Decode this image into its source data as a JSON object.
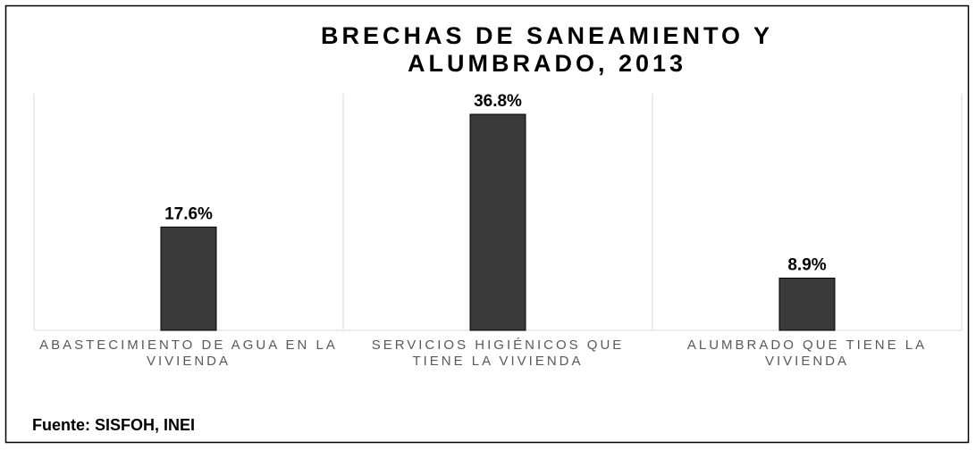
{
  "chart_data": {
    "type": "bar",
    "title": [
      "BRECHAS DE SANEAMIENTO Y",
      "ALUMBRADO, 2013"
    ],
    "categories": [
      "ABASTECIMIENTO DE AGUA EN LA VIVIENDA",
      "SERVICIOS HIGIÉNICOS QUE TIENE LA VIVIENDA",
      "ALUMBRADO QUE TIENE LA VIVIENDA"
    ],
    "values": [
      17.6,
      36.8,
      8.9
    ],
    "value_labels": [
      "17.6%",
      "36.8%",
      "8.9%"
    ],
    "color": "#3a3a3a",
    "source": "Fuente: SISFOH, INEI"
  }
}
